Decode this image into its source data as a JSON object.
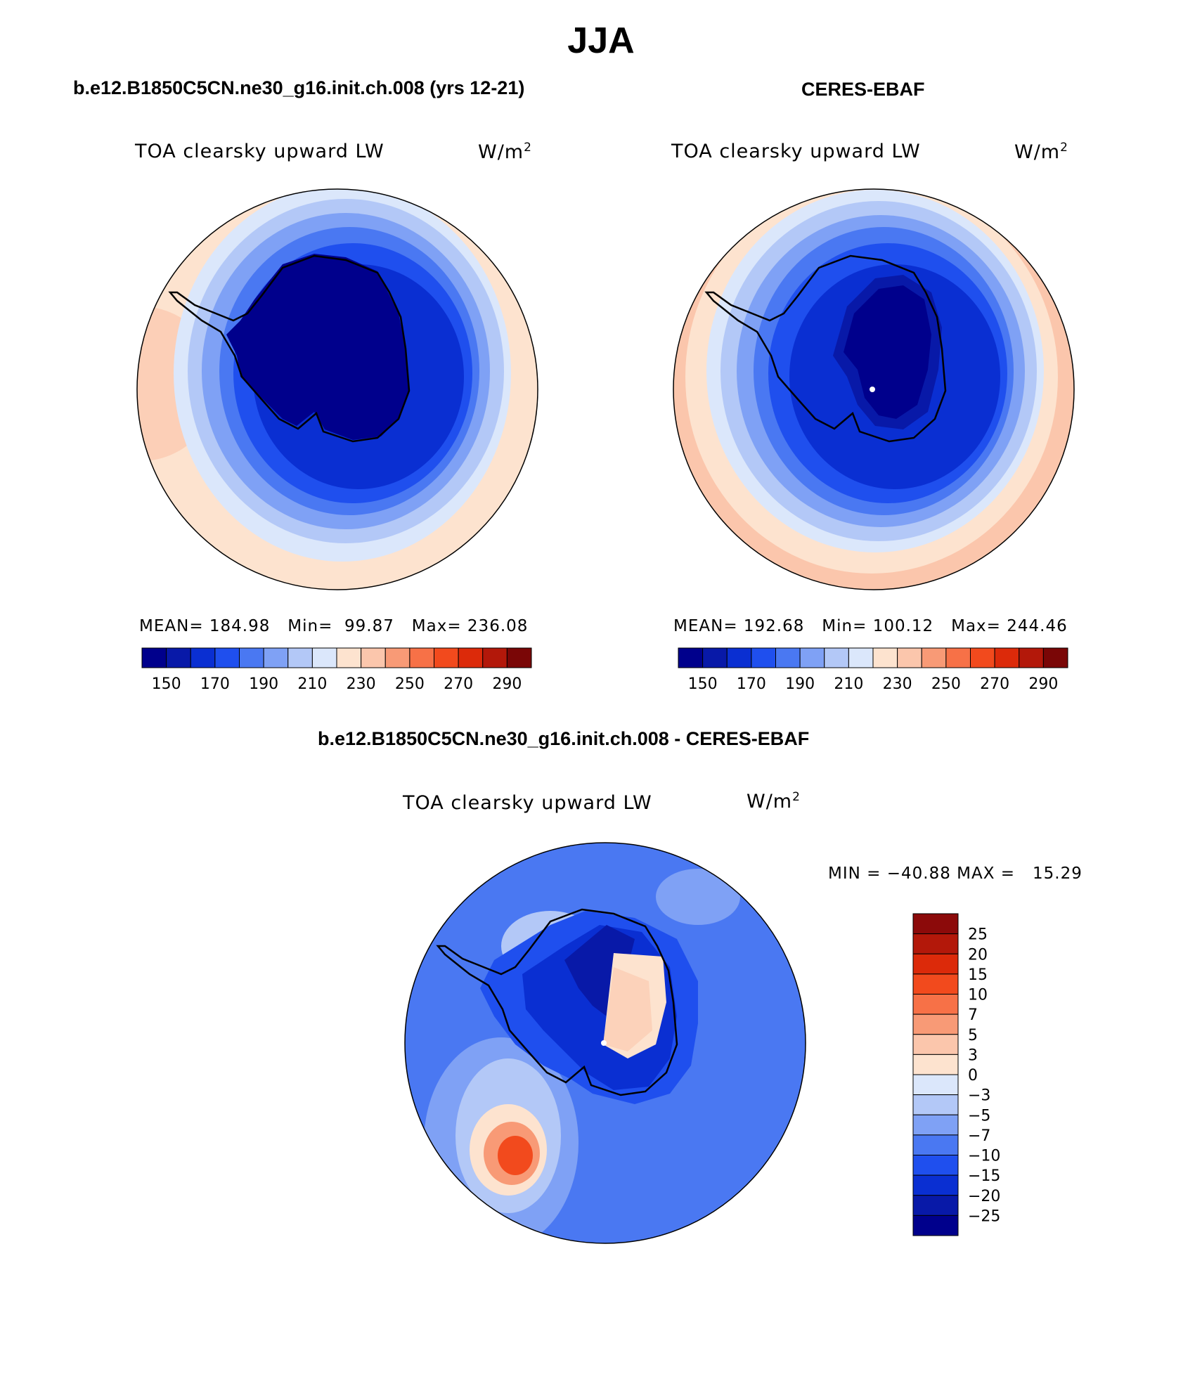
{
  "page": {
    "title": "JJA"
  },
  "panels": [
    {
      "heading": "b.e12.B1850C5CN.ne30_g16.init.ch.008 (yrs 12-21)",
      "variable": "TOA clearsky upward LW",
      "units_base": "W/m",
      "units_exp": "2",
      "stats": "MEAN= 184.98   Min=  99.87   Max= 236.08"
    },
    {
      "heading": "CERES-EBAF",
      "variable": "TOA clearsky upward LW",
      "units_base": "W/m",
      "units_exp": "2",
      "stats": "MEAN= 192.68   Min= 100.12   Max= 244.46"
    },
    {
      "heading": "b.e12.B1850C5CN.ne30_g16.init.ch.008 - CERES-EBAF",
      "variable": "TOA clearsky upward LW",
      "units_base": "W/m",
      "units_exp": "2",
      "stats": "MIN = −40.88 MAX =   15.29"
    }
  ],
  "abs_colorbar": {
    "labels": [
      "150",
      "170",
      "190",
      "210",
      "230",
      "250",
      "270",
      "290"
    ],
    "colors": [
      "#00008c",
      "#0819a8",
      "#0a2fd2",
      "#1f4fee",
      "#4a78f2",
      "#7fa1f5",
      "#b3c8f7",
      "#dbe7fb",
      "#fde3cf",
      "#fbc6ac",
      "#f89a76",
      "#f77147",
      "#f24a1d",
      "#dc2a0a",
      "#b3180a",
      "#7a0606"
    ]
  },
  "diff_colorbar": {
    "labels": [
      "25",
      "20",
      "15",
      "10",
      "7",
      "5",
      "3",
      "0",
      "−3",
      "−5",
      "−7",
      "−10",
      "−15",
      "−20",
      "−25"
    ],
    "colors": [
      "#8c0a0a",
      "#b3180a",
      "#dc2a0a",
      "#f24a1d",
      "#f77147",
      "#f89a76",
      "#fbc6ac",
      "#fde3cf",
      "#dbe7fb",
      "#b3c8f7",
      "#7fa1f5",
      "#4a78f2",
      "#1f4fee",
      "#0a2fd2",
      "#0819a8",
      "#00008c"
    ]
  }
}
